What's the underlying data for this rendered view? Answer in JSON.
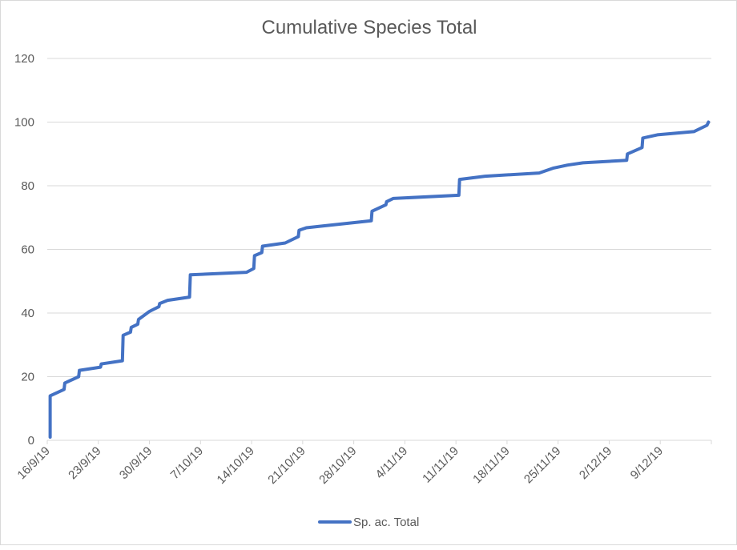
{
  "chart_data": {
    "type": "line",
    "title": "Cumulative Species Total",
    "xlabel": "",
    "ylabel": "",
    "x_axis": {
      "type": "date",
      "start": "2019-09-16",
      "end": "2019-12-16",
      "tick_interval_days": 7,
      "tick_labels": [
        "16/9/19",
        "23/9/19",
        "30/9/19",
        "7/10/19",
        "14/10/19",
        "21/10/19",
        "28/10/19",
        "4/11/19",
        "11/11/19",
        "18/11/19",
        "25/11/19",
        "2/12/19",
        "9/12/19"
      ]
    },
    "y_axis": {
      "ylim": [
        0,
        120
      ],
      "tick_step": 20,
      "tick_labels": [
        "0",
        "20",
        "40",
        "60",
        "80",
        "100",
        "120"
      ]
    },
    "grid": true,
    "legend": {
      "position": "bottom",
      "entries": [
        "Sp. ac. Total"
      ]
    },
    "series": [
      {
        "name": "Sp. ac. Total",
        "color": "#4472c4",
        "points": [
          {
            "day": 0.4,
            "value": 1
          },
          {
            "day": 0.4,
            "value": 14
          },
          {
            "day": 2.3,
            "value": 16
          },
          {
            "day": 2.4,
            "value": 18
          },
          {
            "day": 4.3,
            "value": 20
          },
          {
            "day": 4.4,
            "value": 22
          },
          {
            "day": 7.3,
            "value": 23
          },
          {
            "day": 7.4,
            "value": 24
          },
          {
            "day": 10.3,
            "value": 25
          },
          {
            "day": 10.4,
            "value": 33
          },
          {
            "day": 11.4,
            "value": 34
          },
          {
            "day": 11.5,
            "value": 35.5
          },
          {
            "day": 12.4,
            "value": 36.5
          },
          {
            "day": 12.5,
            "value": 38
          },
          {
            "day": 13.4,
            "value": 39.5
          },
          {
            "day": 14.0,
            "value": 40.5
          },
          {
            "day": 15.3,
            "value": 42
          },
          {
            "day": 15.4,
            "value": 43
          },
          {
            "day": 16.5,
            "value": 44
          },
          {
            "day": 19.5,
            "value": 45
          },
          {
            "day": 19.6,
            "value": 52
          },
          {
            "day": 27.3,
            "value": 52.8
          },
          {
            "day": 28.3,
            "value": 54
          },
          {
            "day": 28.4,
            "value": 58
          },
          {
            "day": 29.4,
            "value": 59
          },
          {
            "day": 29.5,
            "value": 61
          },
          {
            "day": 32.6,
            "value": 62
          },
          {
            "day": 34.4,
            "value": 64
          },
          {
            "day": 34.5,
            "value": 66
          },
          {
            "day": 35.5,
            "value": 66.8
          },
          {
            "day": 37.5,
            "value": 67.3
          },
          {
            "day": 44.4,
            "value": 69
          },
          {
            "day": 44.5,
            "value": 72
          },
          {
            "day": 46.4,
            "value": 74
          },
          {
            "day": 46.5,
            "value": 75
          },
          {
            "day": 47.4,
            "value": 76
          },
          {
            "day": 56.4,
            "value": 77
          },
          {
            "day": 56.5,
            "value": 82
          },
          {
            "day": 60.0,
            "value": 83
          },
          {
            "day": 67.4,
            "value": 84
          },
          {
            "day": 69.3,
            "value": 85.5
          },
          {
            "day": 71.3,
            "value": 86.5
          },
          {
            "day": 73.4,
            "value": 87.2
          },
          {
            "day": 79.4,
            "value": 88
          },
          {
            "day": 79.5,
            "value": 90
          },
          {
            "day": 81.5,
            "value": 92
          },
          {
            "day": 81.6,
            "value": 95
          },
          {
            "day": 83.6,
            "value": 96
          },
          {
            "day": 88.6,
            "value": 97
          },
          {
            "day": 90.4,
            "value": 99
          },
          {
            "day": 90.6,
            "value": 100
          }
        ]
      }
    ]
  }
}
